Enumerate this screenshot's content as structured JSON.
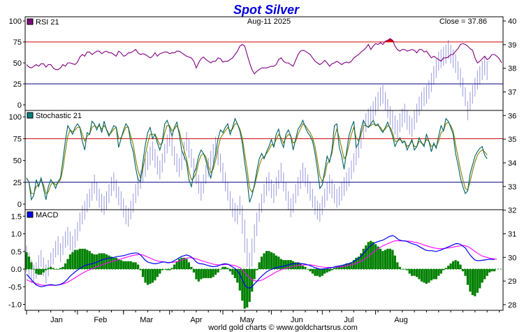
{
  "chart_data": {
    "type": "line",
    "title": "Spot Silver",
    "date_label": "Aug-11  2025",
    "close_label": "Close = 37.86",
    "footer": "world gold charts © www.goldchartsrus.com",
    "months": [
      "Jan",
      "Feb",
      "Mar",
      "Apr",
      "May",
      "Jun",
      "Jul",
      "Aug"
    ],
    "colors": {
      "title": "#0000dd",
      "rsi": "#800080",
      "rsi_swatch": "#800080",
      "stoch_k": "#006060",
      "stoch_d": "#808000",
      "stoch_swatch": "#008080",
      "macd": "#0000ee",
      "signal": "#ff00ff",
      "hist": "#008000",
      "price": "#9999dd",
      "overbought": "#cc0000",
      "oversold": "#000080",
      "rsi_highlight": "#dd0000"
    },
    "price_axis": {
      "labels": [
        "40",
        "39",
        "38",
        "37",
        "36",
        "35",
        "34",
        "33",
        "32",
        "31",
        "30",
        "29",
        "28"
      ],
      "min": 28,
      "max": 40
    },
    "rsi_panel": {
      "label": "RSI 21",
      "tick_labels": [
        "100",
        "75",
        "50",
        "25",
        "0"
      ],
      "ylim": [
        0,
        100
      ],
      "levels": [
        75,
        25
      ],
      "values": [
        48,
        45,
        44,
        46,
        48,
        46,
        49,
        49,
        45,
        48,
        48,
        44,
        42,
        42,
        44,
        48,
        46,
        50,
        50,
        49,
        48,
        51,
        57,
        60,
        58,
        63,
        63,
        60,
        62,
        64,
        64,
        61,
        63,
        64,
        62,
        62,
        60,
        58,
        64,
        62,
        58,
        59,
        62,
        62,
        64,
        66,
        62,
        60,
        61,
        60,
        58,
        56,
        58,
        62,
        58,
        61,
        62,
        63,
        63,
        61,
        62,
        62,
        64,
        64,
        62,
        60,
        58,
        57,
        56,
        52,
        44,
        50,
        55,
        57,
        54,
        52,
        50,
        52,
        52,
        56,
        55,
        51,
        52,
        52,
        54,
        56,
        60,
        64,
        70,
        72,
        70,
        60,
        50,
        42,
        37,
        40,
        42,
        44,
        44,
        44,
        45,
        46,
        46,
        48,
        54,
        56,
        52,
        50,
        50,
        48,
        46,
        53,
        60,
        64,
        65,
        64,
        62,
        60,
        56,
        52,
        50,
        48,
        50,
        53,
        50,
        46,
        49,
        50,
        52,
        50,
        48,
        50,
        51,
        50,
        52,
        56,
        58,
        60,
        63,
        65,
        68,
        72,
        66,
        70,
        73,
        72,
        74,
        72,
        76,
        77,
        79,
        77,
        70,
        66,
        64,
        66,
        66,
        64,
        65,
        66,
        65,
        62,
        66,
        66,
        63,
        64,
        60,
        56,
        58,
        56,
        54,
        52,
        56,
        56,
        57,
        60,
        60,
        64,
        67,
        72,
        73,
        72,
        70,
        67,
        65,
        56,
        50,
        52,
        55,
        58,
        54,
        56,
        60,
        60,
        58,
        55,
        50
      ],
      "highlight": [
        148,
        149,
        150,
        151,
        152
      ]
    },
    "stoch_panel": {
      "label": "Stochastic 21",
      "tick_labels": [
        "100",
        "75",
        "50",
        "25",
        "0"
      ],
      "ylim": [
        0,
        100
      ],
      "levels": [
        75,
        25
      ],
      "k": [
        30,
        25,
        5,
        10,
        28,
        20,
        30,
        18,
        5,
        20,
        28,
        24,
        18,
        26,
        30,
        50,
        72,
        90,
        85,
        80,
        88,
        92,
        88,
        72,
        62,
        82,
        80,
        95,
        92,
        85,
        92,
        82,
        95,
        85,
        78,
        84,
        90,
        88,
        65,
        75,
        85,
        92,
        88,
        70,
        60,
        42,
        28,
        26,
        48,
        68,
        82,
        88,
        75,
        80,
        70,
        62,
        72,
        92,
        96,
        88,
        78,
        88,
        94,
        80,
        62,
        55,
        48,
        28,
        20,
        35,
        42,
        55,
        62,
        58,
        50,
        38,
        30,
        44,
        58,
        75,
        85,
        82,
        88,
        92,
        80,
        88,
        98,
        92,
        84,
        70,
        48,
        28,
        2,
        10,
        22,
        38,
        52,
        58,
        52,
        60,
        66,
        74,
        65,
        80,
        86,
        72,
        65,
        80,
        85,
        78,
        62,
        74,
        86,
        90,
        96,
        88,
        82,
        78,
        72,
        58,
        40,
        18,
        22,
        38,
        55,
        48,
        62,
        90,
        92,
        65,
        55,
        40,
        60,
        78,
        88,
        95,
        65,
        70,
        86,
        96,
        90,
        88,
        92,
        96,
        90,
        92,
        86,
        82,
        88,
        94,
        86,
        78,
        66,
        72,
        76,
        70,
        72,
        62,
        68,
        74,
        62,
        66,
        76,
        70,
        66,
        80,
        72,
        60,
        70,
        64,
        78,
        90,
        84,
        98,
        95,
        88,
        80,
        58,
        45,
        30,
        20,
        12,
        15,
        35,
        45,
        55,
        60,
        64,
        66,
        56,
        52
      ],
      "d": [
        30,
        25,
        12,
        12,
        20,
        22,
        28,
        22,
        12,
        14,
        22,
        25,
        22,
        24,
        28,
        40,
        60,
        78,
        85,
        83,
        85,
        88,
        88,
        80,
        72,
        78,
        80,
        88,
        90,
        88,
        90,
        86,
        90,
        86,
        80,
        82,
        86,
        88,
        75,
        76,
        82,
        88,
        88,
        78,
        68,
        52,
        38,
        30,
        40,
        56,
        70,
        80,
        80,
        80,
        74,
        68,
        70,
        82,
        90,
        90,
        84,
        86,
        90,
        84,
        72,
        62,
        52,
        38,
        28,
        30,
        36,
        48,
        56,
        58,
        54,
        44,
        36,
        40,
        50,
        64,
        76,
        80,
        84,
        88,
        84,
        86,
        92,
        92,
        86,
        76,
        58,
        40,
        18,
        14,
        20,
        32,
        44,
        52,
        54,
        58,
        62,
        68,
        68,
        74,
        80,
        76,
        70,
        76,
        80,
        78,
        70,
        72,
        80,
        86,
        92,
        90,
        86,
        82,
        76,
        66,
        50,
        32,
        26,
        32,
        46,
        50,
        58,
        76,
        86,
        76,
        64,
        52,
        56,
        68,
        80,
        88,
        76,
        72,
        80,
        90,
        90,
        88,
        90,
        92,
        90,
        90,
        88,
        84,
        86,
        90,
        88,
        82,
        72,
        72,
        74,
        72,
        72,
        66,
        68,
        72,
        66,
        66,
        72,
        70,
        68,
        74,
        72,
        66,
        68,
        66,
        72,
        82,
        84,
        92,
        94,
        90,
        84,
        68,
        54,
        40,
        28,
        18,
        16,
        26,
        38,
        48,
        56,
        60,
        62,
        60,
        56
      ]
    },
    "macd_panel": {
      "label": "MACD",
      "tick_labels": [
        "1.5",
        "1.0",
        "0.5",
        "0.0",
        "-0.5",
        "-1.0"
      ],
      "ylim": [
        -1.1,
        1.65
      ],
      "macd": [
        -0.15,
        -0.22,
        -0.3,
        -0.38,
        -0.45,
        -0.48,
        -0.5,
        -0.49,
        -0.47,
        -0.45,
        -0.44,
        -0.45,
        -0.46,
        -0.45,
        -0.43,
        -0.4,
        -0.35,
        -0.28,
        -0.2,
        -0.14,
        -0.08,
        -0.03,
        0.02,
        0.06,
        0.1,
        0.12,
        0.14,
        0.15,
        0.17,
        0.2,
        0.23,
        0.26,
        0.28,
        0.3,
        0.31,
        0.32,
        0.33,
        0.35,
        0.36,
        0.37,
        0.38,
        0.4,
        0.42,
        0.44,
        0.45,
        0.46,
        0.45,
        0.4,
        0.33,
        0.25,
        0.2,
        0.18,
        0.16,
        0.15,
        0.16,
        0.18,
        0.2,
        0.2,
        0.18,
        0.18,
        0.2,
        0.24,
        0.28,
        0.32,
        0.36,
        0.38,
        0.4,
        0.38,
        0.34,
        0.28,
        0.2,
        0.16,
        0.15,
        0.14,
        0.12,
        0.1,
        0.08,
        0.07,
        0.08,
        0.09,
        0.12,
        0.14,
        0.15,
        0.14,
        0.1,
        0.06,
        0.02,
        -0.05,
        -0.15,
        -0.3,
        -0.45,
        -0.52,
        -0.54,
        -0.5,
        -0.42,
        -0.35,
        -0.27,
        -0.2,
        -0.14,
        -0.08,
        -0.04,
        -0.01,
        0.02,
        0.04,
        0.06,
        0.07,
        0.08,
        0.1,
        0.12,
        0.14,
        0.15,
        0.15,
        0.16,
        0.16,
        0.15,
        0.14,
        0.12,
        0.1,
        0.07,
        0.04,
        0.02,
        0.0,
        0.0,
        0.01,
        0.02,
        0.03,
        0.04,
        0.06,
        0.08,
        0.09,
        0.1,
        0.12,
        0.14,
        0.16,
        0.18,
        0.22,
        0.26,
        0.3,
        0.36,
        0.44,
        0.52,
        0.6,
        0.67,
        0.72,
        0.75,
        0.78,
        0.8,
        0.82,
        0.86,
        0.9,
        0.93,
        0.95,
        0.92,
        0.86,
        0.82,
        0.8,
        0.8,
        0.78,
        0.75,
        0.72,
        0.7,
        0.68,
        0.64,
        0.6,
        0.56,
        0.53,
        0.52,
        0.52,
        0.51,
        0.5,
        0.52,
        0.54,
        0.57,
        0.6,
        0.63,
        0.66,
        0.69,
        0.72,
        0.72,
        0.7,
        0.65,
        0.6,
        0.5,
        0.4,
        0.32,
        0.26,
        0.24,
        0.24,
        0.25,
        0.26,
        0.27,
        0.28,
        0.28,
        0.27
      ],
      "signal": [
        -0.3,
        -0.33,
        -0.36,
        -0.38,
        -0.41,
        -0.43,
        -0.45,
        -0.46,
        -0.46,
        -0.46,
        -0.46,
        -0.46,
        -0.46,
        -0.45,
        -0.44,
        -0.42,
        -0.4,
        -0.37,
        -0.33,
        -0.29,
        -0.25,
        -0.2,
        -0.16,
        -0.12,
        -0.08,
        -0.05,
        -0.02,
        0.01,
        0.04,
        0.07,
        0.09,
        0.12,
        0.14,
        0.17,
        0.19,
        0.21,
        0.23,
        0.25,
        0.27,
        0.29,
        0.31,
        0.33,
        0.35,
        0.37,
        0.39,
        0.4,
        0.41,
        0.41,
        0.4,
        0.37,
        0.34,
        0.31,
        0.28,
        0.25,
        0.23,
        0.22,
        0.21,
        0.2,
        0.19,
        0.19,
        0.19,
        0.2,
        0.21,
        0.23,
        0.26,
        0.28,
        0.31,
        0.32,
        0.32,
        0.31,
        0.29,
        0.27,
        0.24,
        0.22,
        0.2,
        0.18,
        0.16,
        0.14,
        0.13,
        0.12,
        0.12,
        0.12,
        0.13,
        0.13,
        0.12,
        0.11,
        0.1,
        0.07,
        0.04,
        -0.02,
        -0.1,
        -0.18,
        -0.25,
        -0.3,
        -0.33,
        -0.34,
        -0.33,
        -0.31,
        -0.28,
        -0.24,
        -0.2,
        -0.16,
        -0.12,
        -0.08,
        -0.05,
        -0.02,
        0.0,
        0.02,
        0.04,
        0.06,
        0.08,
        0.09,
        0.1,
        0.11,
        0.12,
        0.12,
        0.12,
        0.12,
        0.11,
        0.1,
        0.08,
        0.07,
        0.06,
        0.05,
        0.05,
        0.05,
        0.05,
        0.05,
        0.06,
        0.06,
        0.07,
        0.08,
        0.09,
        0.11,
        0.12,
        0.14,
        0.16,
        0.19,
        0.22,
        0.26,
        0.31,
        0.36,
        0.42,
        0.48,
        0.53,
        0.58,
        0.62,
        0.66,
        0.69,
        0.72,
        0.75,
        0.78,
        0.8,
        0.8,
        0.8,
        0.8,
        0.8,
        0.79,
        0.79,
        0.78,
        0.76,
        0.75,
        0.73,
        0.71,
        0.68,
        0.66,
        0.64,
        0.62,
        0.6,
        0.59,
        0.58,
        0.58,
        0.58,
        0.59,
        0.6,
        0.61,
        0.62,
        0.64,
        0.65,
        0.66,
        0.67,
        0.66,
        0.64,
        0.6,
        0.55,
        0.5,
        0.45,
        0.41,
        0.37,
        0.35,
        0.33,
        0.31,
        0.3,
        0.29,
        0.28
      ]
    },
    "price": {
      "highs": [
        30.5,
        30.2,
        29.9,
        29.7,
        29.8,
        30.1,
        30.3,
        30.0,
        29.7,
        29.9,
        30.2,
        30.4,
        30.7,
        30.9,
        30.6,
        30.9,
        31.1,
        31.3,
        31.1,
        30.9,
        31.2,
        31.5,
        31.9,
        32.2,
        32.4,
        32.7,
        32.9,
        33.2,
        33.5,
        33.2,
        32.9,
        32.7,
        32.6,
        32.8,
        33.1,
        33.4,
        33.6,
        33.3,
        33.0,
        32.8,
        32.5,
        32.2,
        32.1,
        32.4,
        32.7,
        33.1,
        33.4,
        33.7,
        34.0,
        34.2,
        34.5,
        34.7,
        34.9,
        34.6,
        34.3,
        34.1,
        34.4,
        34.8,
        35.2,
        35.5,
        35.1,
        34.7,
        34.4,
        34.2,
        34.5,
        34.9,
        35.3,
        35.0,
        34.6,
        34.2,
        33.9,
        33.5,
        33.2,
        33.5,
        33.9,
        34.2,
        34.5,
        34.8,
        35.1,
        34.7,
        34.4,
        34.0,
        33.6,
        33.2,
        32.8,
        32.5,
        32.3,
        32.2,
        32.6,
        32.2,
        31.6,
        30.8,
        30.2,
        30.8,
        31.4,
        31.9,
        32.3,
        32.7,
        33.1,
        33.4,
        33.6,
        33.3,
        33.1,
        33.4,
        33.7,
        34.0,
        33.6,
        33.2,
        32.8,
        32.5,
        32.7,
        33.1,
        33.4,
        33.7,
        34.0,
        33.8,
        33.5,
        33.2,
        32.9,
        32.6,
        32.4,
        32.3,
        32.6,
        32.9,
        33.2,
        33.5,
        33.3,
        33.1,
        32.9,
        33.0,
        33.2,
        33.4,
        33.6,
        33.8,
        34.1,
        34.4,
        34.7,
        35.0,
        35.4,
        35.8,
        36.1,
        36.3,
        36.4,
        36.6,
        36.8,
        37.0,
        37.2,
        37.3,
        37.0,
        36.7,
        36.4,
        36.2,
        36.0,
        35.8,
        36.1,
        36.3,
        36.5,
        36.2,
        36.0,
        35.9,
        36.2,
        36.5,
        36.8,
        37.0,
        37.2,
        37.3,
        37.5,
        37.8,
        38.1,
        38.4,
        38.7,
        38.8,
        38.9,
        39.0,
        39.2,
        39.0,
        38.8,
        38.6,
        38.3,
        38.0,
        37.6,
        37.2,
        36.6,
        37.0,
        37.3,
        37.6,
        37.9,
        38.1,
        38.3,
        38.5,
        38.3
      ],
      "lows": [
        29.4,
        29.1,
        28.9,
        28.9,
        29.1,
        29.4,
        29.6,
        29.2,
        28.9,
        29.2,
        29.5,
        29.7,
        30.0,
        30.1,
        29.8,
        30.1,
        30.4,
        30.5,
        30.3,
        30.1,
        30.4,
        30.7,
        31.1,
        31.4,
        31.6,
        31.9,
        32.1,
        32.4,
        32.7,
        32.4,
        32.1,
        31.9,
        31.8,
        32.0,
        32.3,
        32.6,
        32.8,
        32.5,
        32.2,
        32.0,
        31.7,
        31.4,
        31.3,
        31.6,
        31.9,
        32.3,
        32.6,
        32.9,
        33.2,
        33.4,
        33.7,
        33.9,
        34.1,
        33.8,
        33.5,
        33.3,
        33.6,
        34.0,
        34.4,
        34.7,
        34.3,
        33.9,
        33.6,
        33.4,
        33.7,
        34.1,
        34.5,
        34.2,
        33.8,
        33.4,
        33.1,
        32.7,
        32.4,
        32.7,
        33.1,
        33.4,
        33.7,
        34.0,
        34.3,
        33.9,
        33.6,
        33.2,
        32.8,
        32.4,
        32.0,
        31.7,
        31.5,
        31.4,
        31.8,
        31.0,
        30.2,
        29.6,
        29.2,
        29.6,
        30.2,
        30.9,
        31.5,
        31.9,
        32.3,
        32.6,
        32.8,
        32.5,
        32.3,
        32.6,
        32.9,
        33.2,
        32.8,
        32.4,
        32.0,
        31.7,
        31.9,
        32.3,
        32.6,
        32.9,
        33.2,
        33.0,
        32.7,
        32.4,
        32.1,
        31.8,
        31.6,
        31.5,
        31.8,
        32.1,
        32.4,
        32.7,
        32.5,
        32.3,
        32.1,
        32.2,
        32.4,
        32.6,
        32.8,
        33.0,
        33.3,
        33.6,
        33.9,
        34.2,
        34.6,
        35.0,
        35.3,
        35.5,
        35.6,
        35.8,
        36.0,
        36.2,
        36.4,
        36.5,
        36.2,
        35.9,
        35.6,
        35.4,
        35.2,
        35.0,
        35.3,
        35.5,
        35.7,
        35.4,
        35.2,
        35.1,
        35.4,
        35.7,
        36.0,
        36.2,
        36.4,
        36.5,
        36.7,
        37.0,
        37.3,
        37.6,
        37.9,
        38.0,
        38.1,
        38.2,
        38.4,
        38.2,
        38.0,
        37.8,
        37.5,
        37.2,
        36.8,
        36.4,
        35.8,
        36.2,
        36.5,
        36.8,
        37.1,
        37.3,
        37.5,
        37.7,
        37.5
      ]
    }
  }
}
